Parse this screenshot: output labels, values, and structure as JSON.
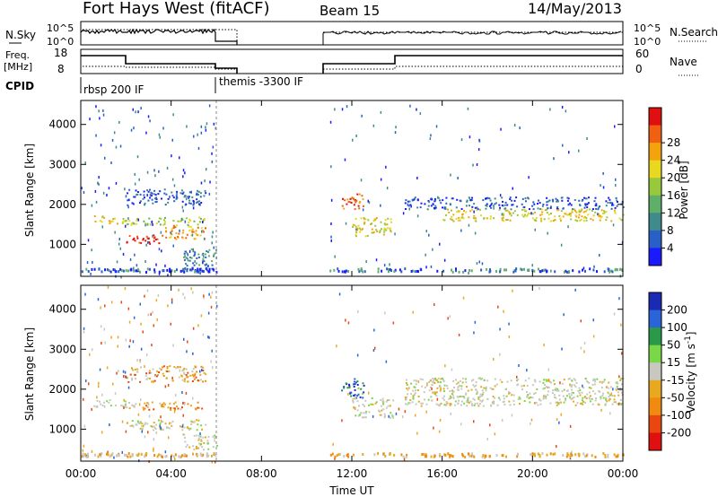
{
  "header": {
    "title": "Fort Hays West (fitACF)",
    "beam": "Beam 15",
    "date": "14/May/2013"
  },
  "nsky_panel": {
    "left_label": "N.Sky",
    "left_ticks": [
      "10^5",
      "10^0"
    ],
    "right_ticks": [
      "10^5",
      "10^0"
    ],
    "right_label": "N.Search"
  },
  "freq_panel": {
    "left_label_1": "Freq.",
    "left_label_2": "[MHz]",
    "left_ticks": [
      "18",
      "8"
    ],
    "right_ticks": [
      "60",
      "0"
    ],
    "right_label": "Nave"
  },
  "cpid_panel": {
    "label": "CPID",
    "modes": [
      {
        "name": "rbsp 200 IF",
        "start_hour": 0
      },
      {
        "name": "themis -3300 IF",
        "start_hour": 6.0
      }
    ]
  },
  "chart_data": [
    {
      "type": "heatmap",
      "name": "power",
      "ylabel": "Slant Range [km]",
      "ylim": [
        200,
        4600
      ],
      "yticks": [
        "1000",
        "2000",
        "3000",
        "4000"
      ],
      "xlim": [
        0,
        24
      ],
      "colorbar": {
        "label": "Power [dB]",
        "ticks": [
          "4",
          "8",
          "12",
          "16",
          "20",
          "24",
          "28"
        ],
        "colors": [
          "#1a1aff",
          "#2860c8",
          "#3f8a8a",
          "#5fae6a",
          "#98c83c",
          "#e8d820",
          "#f4a30f",
          "#f06010",
          "#e01010"
        ]
      },
      "bands": [
        {
          "t0": 0.5,
          "t1": 1.0,
          "r0": 1550,
          "r1": 1750,
          "level": 5
        },
        {
          "t0": 1.0,
          "t1": 2.0,
          "r0": 1520,
          "r1": 1720,
          "level": 5
        },
        {
          "t0": 2.0,
          "t1": 3.5,
          "r0": 1000,
          "r1": 1250,
          "level": 8
        },
        {
          "t0": 3.5,
          "t1": 5.5,
          "r0": 1150,
          "r1": 1500,
          "level": 6
        },
        {
          "t0": 2.0,
          "t1": 5.5,
          "r0": 1500,
          "r1": 1700,
          "level": 4
        },
        {
          "t0": 2.0,
          "t1": 5.5,
          "r0": 2000,
          "r1": 2400,
          "level": 1
        },
        {
          "t0": 4.5,
          "t1": 6.0,
          "r0": 400,
          "r1": 900,
          "level": 2
        },
        {
          "t0": 11.5,
          "t1": 12.5,
          "r0": 1900,
          "r1": 2300,
          "level": 7
        },
        {
          "t0": 12.0,
          "t1": 13.8,
          "r0": 1200,
          "r1": 1700,
          "level": 5
        },
        {
          "t0": 14.3,
          "t1": 24.0,
          "r0": 1900,
          "r1": 2200,
          "level": 1
        },
        {
          "t0": 16.0,
          "t1": 24.0,
          "r0": 1600,
          "r1": 1900,
          "level": 5
        }
      ]
    },
    {
      "type": "heatmap",
      "name": "velocity",
      "ylabel": "Slant Range [km]",
      "ylim": [
        200,
        4600
      ],
      "yticks": [
        "1000",
        "2000",
        "3000",
        "4000"
      ],
      "xlim": [
        0,
        24
      ],
      "xticks": [
        "00:00",
        "04:00",
        "08:00",
        "12:00",
        "16:00",
        "20:00",
        "00:00"
      ],
      "xlabel": "Time UT",
      "colorbar": {
        "label": "Velocity [m s^-1]",
        "ticks": [
          "200",
          "100",
          "50",
          "15",
          "-15",
          "-50",
          "-100",
          "-200"
        ],
        "colors": [
          "#1a2ab4",
          "#2a64d8",
          "#2a9a4a",
          "#7ad848",
          "#c8c8c0",
          "#e8a820",
          "#f08a10",
          "#e84810",
          "#e01010"
        ]
      },
      "bands": [
        {
          "t0": 0.5,
          "t1": 2.0,
          "r0": 1550,
          "r1": 1750,
          "v": "grey"
        },
        {
          "t0": 2.0,
          "t1": 5.5,
          "r0": 1000,
          "r1": 1250,
          "v": "grey"
        },
        {
          "t0": 2.0,
          "t1": 5.5,
          "r0": 1500,
          "r1": 1700,
          "v": "orange"
        },
        {
          "t0": 2.0,
          "t1": 5.5,
          "r0": 2200,
          "r1": 2600,
          "v": "orange"
        },
        {
          "t0": 4.5,
          "t1": 6.0,
          "r0": 500,
          "r1": 900,
          "v": "grey"
        },
        {
          "t0": 11.5,
          "t1": 12.5,
          "r0": 1800,
          "r1": 2300,
          "v": "blue"
        },
        {
          "t0": 12.0,
          "t1": 13.8,
          "r0": 1300,
          "r1": 1800,
          "v": "grey"
        },
        {
          "t0": 14.3,
          "t1": 24.0,
          "r0": 1600,
          "r1": 2300,
          "v": "grey"
        }
      ]
    }
  ]
}
